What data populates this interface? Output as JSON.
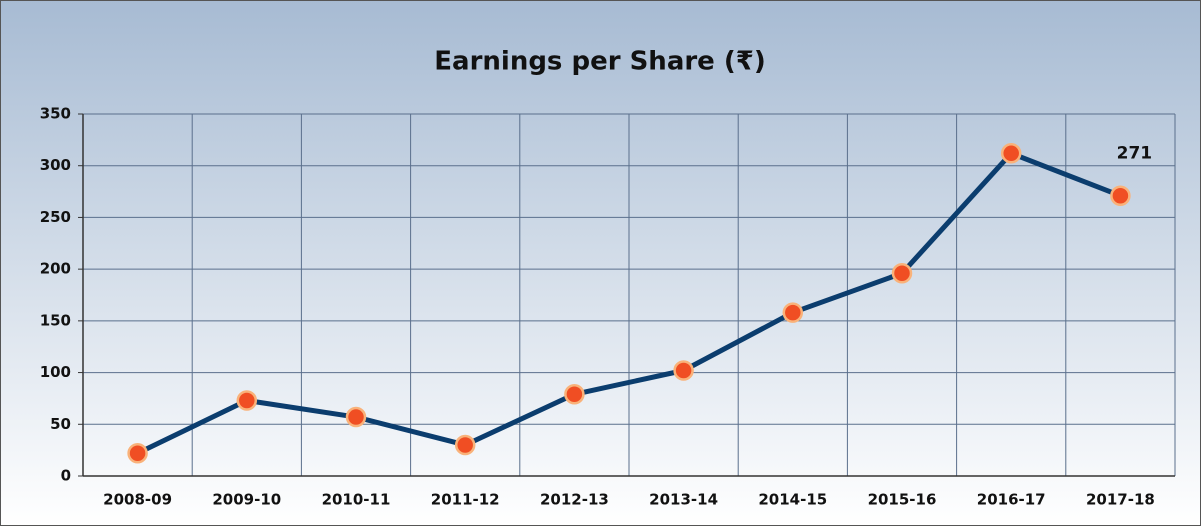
{
  "chart_data": {
    "type": "line",
    "title": "Earnings per Share (₹)",
    "categories": [
      "2008-09",
      "2009-10",
      "2010-11",
      "2011-12",
      "2012-13",
      "2013-14",
      "2014-15",
      "2015-16",
      "2016-17",
      "2017-18"
    ],
    "values": [
      22,
      73,
      57,
      30,
      79,
      102,
      158,
      196,
      312,
      271
    ],
    "color": "#0b3d6e",
    "marker_color": "#f04e23",
    "label_last": true,
    "ylim": [
      0,
      350
    ],
    "yticks": [
      0,
      50,
      100,
      150,
      200,
      250,
      300,
      350
    ],
    "grid": true
  }
}
